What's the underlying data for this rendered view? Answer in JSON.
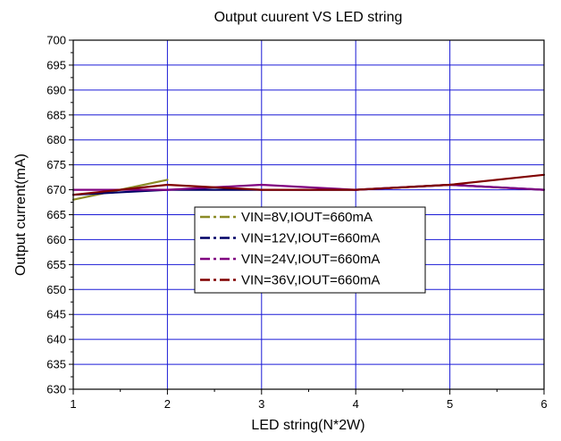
{
  "chart_data": {
    "type": "line",
    "title": "Output cuurent VS LED string",
    "xlabel": "LED string(N*2W)",
    "ylabel": "Output current(mA)",
    "xlim": [
      1,
      6
    ],
    "ylim": [
      630,
      700
    ],
    "x_ticks": [
      "1",
      "2",
      "3",
      "4",
      "5",
      "6"
    ],
    "y_ticks": [
      "630",
      "635",
      "640",
      "645",
      "650",
      "655",
      "660",
      "665",
      "670",
      "675",
      "680",
      "685",
      "690",
      "695",
      "700"
    ],
    "grid": true,
    "legend_position": "center-left",
    "series": [
      {
        "name": "VIN=8V,IOUT=660mA",
        "color": "#8B8B26",
        "x": [
          1,
          2
        ],
        "y": [
          668,
          672
        ]
      },
      {
        "name": "VIN=12V,IOUT=660mA",
        "color": "#000066",
        "x": [
          1,
          2,
          3,
          4,
          5,
          6
        ],
        "y": [
          669,
          670,
          670,
          670,
          671,
          670
        ]
      },
      {
        "name": "VIN=24V,IOUT=660mA",
        "color": "#800080",
        "x": [
          1,
          2,
          3,
          4,
          5,
          6
        ],
        "y": [
          670,
          670,
          671,
          670,
          671,
          670
        ]
      },
      {
        "name": "VIN=36V,IOUT=660mA",
        "color": "#800000",
        "x": [
          1,
          2,
          3,
          4,
          5,
          6
        ],
        "y": [
          669,
          671,
          670,
          670,
          671,
          673
        ]
      }
    ]
  }
}
